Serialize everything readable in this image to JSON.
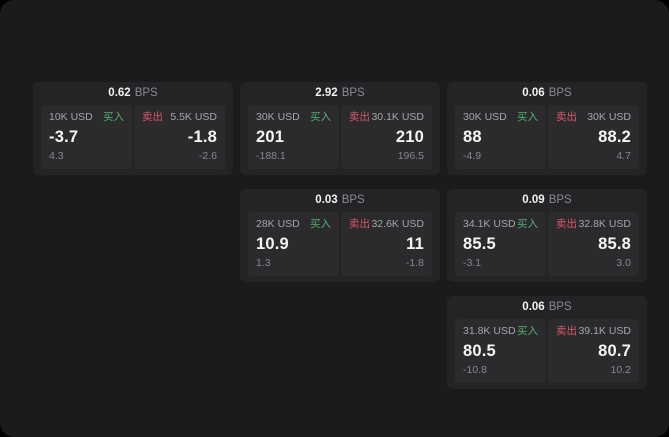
{
  "labels": {
    "bps": "BPS",
    "buy": "买入",
    "sell": "卖出"
  },
  "colors": {
    "buy": "#51b06e",
    "sell": "#d95667",
    "panel_bg": "#1b1b1d",
    "card_bg": "#242427",
    "quote_bg": "#2b2b2e"
  },
  "cards": [
    {
      "bps": "0.62",
      "buy": {
        "amount": "10K USD",
        "price": "-3.7",
        "change": "4.3"
      },
      "sell": {
        "amount": "5.5K USD",
        "price": "-1.8",
        "change": "-2.6"
      }
    },
    {
      "bps": "2.92",
      "buy": {
        "amount": "30K USD",
        "price": "201",
        "change": "-188.1"
      },
      "sell": {
        "amount": "30.1K USD",
        "price": "210",
        "change": "196.5"
      }
    },
    {
      "bps": "0.06",
      "buy": {
        "amount": "30K USD",
        "price": "88",
        "change": "-4.9"
      },
      "sell": {
        "amount": "30K USD",
        "price": "88.2",
        "change": "4.7"
      }
    },
    {
      "bps": "0.03",
      "buy": {
        "amount": "28K USD",
        "price": "10.9",
        "change": "1.3"
      },
      "sell": {
        "amount": "32.6K USD",
        "price": "11",
        "change": "-1.8"
      }
    },
    {
      "bps": "0.09",
      "buy": {
        "amount": "34.1K USD",
        "price": "85.5",
        "change": "-3.1"
      },
      "sell": {
        "amount": "32.8K USD",
        "price": "85.8",
        "change": "3.0"
      }
    },
    {
      "bps": "0.06",
      "buy": {
        "amount": "31.8K USD",
        "price": "80.5",
        "change": "-10.8"
      },
      "sell": {
        "amount": "39.1K USD",
        "price": "80.7",
        "change": "10.2"
      }
    }
  ]
}
